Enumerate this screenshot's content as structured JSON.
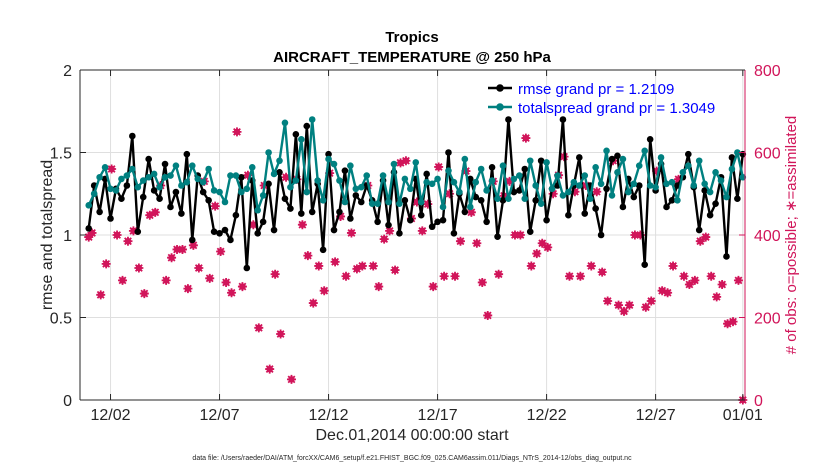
{
  "chart_data": {
    "type": "line",
    "title": "Tropics",
    "subtitle": "AIRCRAFT_TEMPERATURE @ 250 hPa",
    "xlabel": "Dec.01,2014 00:00:00 start",
    "ylabel_left": "rmse and totalspread",
    "ylabel_right": "# of obs: o=possible; ∗=assimilated",
    "footnote": "data file: /Users/raeder/DAI/ATM_forcXX/CAM6_setup/f.e21.FHIST_BGC.f09_025.CAM6assim.011/Diags_NTrS_2014-12/obs_diag_output.nc",
    "x_range": [
      0.6,
      31.1
    ],
    "ylim_left": [
      0,
      2
    ],
    "ylim_right": [
      0,
      800
    ],
    "x_ticks": [
      {
        "x": 2,
        "label": "12/02"
      },
      {
        "x": 7,
        "label": "12/07"
      },
      {
        "x": 12,
        "label": "12/12"
      },
      {
        "x": 17,
        "label": "12/17"
      },
      {
        "x": 22,
        "label": "12/22"
      },
      {
        "x": 27,
        "label": "12/27"
      },
      {
        "x": 31,
        "label": "01/01"
      }
    ],
    "y_ticks_left": [
      "0",
      "0.5",
      "1",
      "1.5",
      "2"
    ],
    "y_ticks_right": [
      "0",
      "200",
      "400",
      "600",
      "800"
    ],
    "colors": {
      "rmse": "#000000",
      "spread": "#008080",
      "obs": "#d1155a",
      "axis": "#262626",
      "grid": "#dfdfdf",
      "legend_text": "#0000ff"
    },
    "legend": [
      {
        "label": "rmse grand pr = 1.2109",
        "series": "rmse"
      },
      {
        "label": "totalspread grand pr = 1.3049",
        "series": "spread"
      }
    ],
    "x": [
      1.0,
      1.25,
      1.5,
      1.75,
      2.0,
      2.25,
      2.5,
      2.75,
      3.0,
      3.25,
      3.5,
      3.75,
      4.0,
      4.25,
      4.5,
      4.75,
      5.0,
      5.25,
      5.5,
      5.75,
      6.0,
      6.25,
      6.5,
      6.75,
      7.0,
      7.25,
      7.5,
      7.75,
      8.0,
      8.25,
      8.5,
      8.75,
      9.0,
      9.25,
      9.5,
      9.75,
      10.0,
      10.25,
      10.5,
      10.75,
      11.0,
      11.25,
      11.5,
      11.75,
      12.0,
      12.25,
      12.5,
      12.75,
      13.0,
      13.25,
      13.5,
      13.75,
      14.0,
      14.25,
      14.5,
      14.75,
      15.0,
      15.25,
      15.5,
      15.75,
      16.0,
      16.25,
      16.5,
      16.75,
      17.0,
      17.25,
      17.5,
      17.75,
      18.0,
      18.25,
      18.5,
      18.75,
      19.0,
      19.25,
      19.5,
      19.75,
      20.0,
      20.25,
      20.5,
      20.75,
      21.0,
      21.25,
      21.5,
      21.75,
      22.0,
      22.25,
      22.5,
      22.75,
      23.0,
      23.25,
      23.5,
      23.75,
      24.0,
      24.25,
      24.5,
      24.75,
      25.0,
      25.25,
      25.5,
      25.75,
      26.0,
      26.25,
      26.5,
      26.75,
      27.0,
      27.25,
      27.5,
      27.75,
      28.0,
      28.25,
      28.5,
      28.75,
      29.0,
      29.25,
      29.5,
      29.75,
      30.0,
      30.25,
      30.5,
      30.75,
      31.0
    ],
    "series": [
      {
        "name": "rmse",
        "values": [
          1.04,
          1.3,
          1.14,
          1.34,
          1.1,
          1.28,
          1.22,
          1.3,
          1.6,
          1.02,
          1.23,
          1.46,
          1.27,
          1.22,
          1.43,
          1.17,
          1.26,
          1.13,
          1.49,
          0.97,
          1.36,
          1.26,
          1.21,
          1.02,
          1.01,
          1.03,
          0.97,
          1.12,
          1.35,
          0.8,
          1.33,
          1.01,
          1.08,
          1.31,
          1.03,
          1.38,
          1.22,
          1.16,
          1.61,
          1.13,
          1.66,
          1.14,
          1.31,
          0.91,
          1.49,
          1.03,
          1.14,
          1.39,
          1.1,
          1.24,
          1.2,
          1.3,
          1.21,
          1.08,
          1.33,
          1.06,
          1.38,
          1.01,
          1.21,
          1.09,
          1.34,
          1.12,
          1.37,
          1.05,
          1.08,
          1.09,
          1.5,
          1.01,
          1.25,
          1.14,
          1.34,
          1.23,
          1.21,
          1.08,
          1.41,
          0.99,
          1.21,
          1.7,
          1.26,
          1.27,
          1.4,
          1.02,
          1.21,
          1.45,
          1.09,
          1.28,
          1.3,
          1.7,
          1.12,
          1.3,
          1.47,
          1.13,
          1.3,
          1.16,
          1.0,
          1.28,
          1.46,
          1.48,
          1.17,
          1.34,
          1.23,
          1.3,
          0.82,
          1.58,
          1.27,
          1.43,
          1.17,
          1.21,
          1.3,
          1.35,
          1.49,
          1.29,
          1.03,
          1.27,
          1.12,
          1.19,
          1.35,
          0.87,
          1.47,
          1.22,
          1.49
        ]
      },
      {
        "name": "spread",
        "values": [
          1.18,
          1.25,
          1.35,
          1.41,
          1.28,
          1.27,
          1.34,
          1.36,
          1.4,
          1.29,
          1.33,
          1.35,
          1.37,
          1.29,
          1.35,
          1.36,
          1.42,
          1.3,
          1.32,
          1.42,
          1.34,
          1.32,
          1.4,
          1.27,
          1.26,
          1.2,
          1.36,
          1.36,
          1.26,
          1.28,
          1.41,
          1.15,
          1.24,
          1.5,
          1.37,
          1.45,
          1.68,
          1.29,
          1.33,
          1.58,
          1.26,
          1.7,
          1.33,
          1.21,
          1.46,
          1.43,
          1.33,
          1.2,
          1.42,
          1.28,
          1.29,
          1.36,
          1.19,
          1.19,
          1.36,
          1.2,
          1.43,
          1.19,
          1.34,
          1.28,
          1.44,
          1.2,
          1.32,
          1.31,
          1.34,
          1.17,
          1.39,
          1.32,
          1.26,
          1.46,
          1.17,
          1.32,
          1.4,
          1.27,
          1.33,
          1.22,
          1.42,
          1.22,
          1.34,
          1.36,
          1.22,
          1.45,
          1.3,
          1.19,
          1.44,
          1.28,
          1.36,
          1.24,
          1.26,
          1.32,
          1.3,
          1.36,
          1.22,
          1.41,
          1.31,
          1.51,
          1.24,
          1.38,
          1.46,
          1.26,
          1.31,
          1.42,
          1.51,
          1.3,
          1.29,
          1.47,
          1.31,
          1.32,
          1.21,
          1.38,
          1.42,
          1.3,
          1.45,
          1.31,
          1.26,
          1.38,
          1.33,
          1.23,
          1.4,
          1.5,
          1.35
        ]
      }
    ],
    "obs_points": [
      {
        "x": 1.0,
        "y": 395
      },
      {
        "x": 1.15,
        "y": 405
      },
      {
        "x": 1.55,
        "y": 255
      },
      {
        "x": 1.8,
        "y": 330
      },
      {
        "x": 2.05,
        "y": 560
      },
      {
        "x": 2.3,
        "y": 400
      },
      {
        "x": 2.55,
        "y": 290
      },
      {
        "x": 2.8,
        "y": 385
      },
      {
        "x": 3.05,
        "y": 410
      },
      {
        "x": 3.3,
        "y": 320
      },
      {
        "x": 3.55,
        "y": 258
      },
      {
        "x": 3.8,
        "y": 448
      },
      {
        "x": 4.05,
        "y": 455
      },
      {
        "x": 4.3,
        "y": 520
      },
      {
        "x": 4.55,
        "y": 290
      },
      {
        "x": 4.8,
        "y": 345
      },
      {
        "x": 5.05,
        "y": 365
      },
      {
        "x": 5.3,
        "y": 365
      },
      {
        "x": 5.55,
        "y": 270
      },
      {
        "x": 5.8,
        "y": 375
      },
      {
        "x": 6.05,
        "y": 320
      },
      {
        "x": 6.3,
        "y": 530
      },
      {
        "x": 6.55,
        "y": 295
      },
      {
        "x": 6.8,
        "y": 470
      },
      {
        "x": 7.05,
        "y": 360
      },
      {
        "x": 7.3,
        "y": 285
      },
      {
        "x": 7.55,
        "y": 260
      },
      {
        "x": 7.8,
        "y": 650
      },
      {
        "x": 8.05,
        "y": 275
      },
      {
        "x": 8.3,
        "y": 545
      },
      {
        "x": 8.55,
        "y": 425
      },
      {
        "x": 8.8,
        "y": 175
      },
      {
        "x": 9.05,
        "y": 520
      },
      {
        "x": 9.3,
        "y": 75
      },
      {
        "x": 9.55,
        "y": 305
      },
      {
        "x": 9.8,
        "y": 160
      },
      {
        "x": 10.05,
        "y": 540
      },
      {
        "x": 10.3,
        "y": 50
      },
      {
        "x": 10.55,
        "y": 535
      },
      {
        "x": 10.8,
        "y": 425
      },
      {
        "x": 11.05,
        "y": 350
      },
      {
        "x": 11.3,
        "y": 235
      },
      {
        "x": 11.55,
        "y": 325
      },
      {
        "x": 11.8,
        "y": 265
      },
      {
        "x": 12.05,
        "y": 550
      },
      {
        "x": 12.3,
        "y": 335
      },
      {
        "x": 12.55,
        "y": 445
      },
      {
        "x": 12.8,
        "y": 300
      },
      {
        "x": 13.05,
        "y": 405
      },
      {
        "x": 13.3,
        "y": 318
      },
      {
        "x": 13.55,
        "y": 325
      },
      {
        "x": 13.8,
        "y": 520
      },
      {
        "x": 14.05,
        "y": 325
      },
      {
        "x": 14.3,
        "y": 275
      },
      {
        "x": 14.55,
        "y": 390
      },
      {
        "x": 14.8,
        "y": 410
      },
      {
        "x": 15.05,
        "y": 315
      },
      {
        "x": 15.3,
        "y": 575
      },
      {
        "x": 15.55,
        "y": 580
      },
      {
        "x": 15.8,
        "y": 440
      },
      {
        "x": 16.05,
        "y": 480
      },
      {
        "x": 16.3,
        "y": 410
      },
      {
        "x": 16.55,
        "y": 475
      },
      {
        "x": 16.8,
        "y": 275
      },
      {
        "x": 17.05,
        "y": 565
      },
      {
        "x": 17.3,
        "y": 300
      },
      {
        "x": 17.55,
        "y": 500
      },
      {
        "x": 17.8,
        "y": 300
      },
      {
        "x": 18.05,
        "y": 385
      },
      {
        "x": 18.3,
        "y": 555
      },
      {
        "x": 18.55,
        "y": 455
      },
      {
        "x": 18.8,
        "y": 380
      },
      {
        "x": 19.05,
        "y": 285
      },
      {
        "x": 19.3,
        "y": 205
      },
      {
        "x": 19.55,
        "y": 530
      },
      {
        "x": 19.8,
        "y": 305
      },
      {
        "x": 20.05,
        "y": 495
      },
      {
        "x": 20.3,
        "y": 530
      },
      {
        "x": 20.55,
        "y": 400
      },
      {
        "x": 20.8,
        "y": 400
      },
      {
        "x": 21.05,
        "y": 635
      },
      {
        "x": 21.3,
        "y": 325
      },
      {
        "x": 21.55,
        "y": 355
      },
      {
        "x": 21.8,
        "y": 380
      },
      {
        "x": 22.05,
        "y": 370
      },
      {
        "x": 22.3,
        "y": 500
      },
      {
        "x": 22.55,
        "y": 545
      },
      {
        "x": 22.8,
        "y": 590
      },
      {
        "x": 23.05,
        "y": 300
      },
      {
        "x": 23.3,
        "y": 505
      },
      {
        "x": 23.55,
        "y": 300
      },
      {
        "x": 23.8,
        "y": 520
      },
      {
        "x": 24.05,
        "y": 325
      },
      {
        "x": 24.3,
        "y": 505
      },
      {
        "x": 24.55,
        "y": 310
      },
      {
        "x": 24.8,
        "y": 240
      },
      {
        "x": 25.05,
        "y": 580
      },
      {
        "x": 25.3,
        "y": 230
      },
      {
        "x": 25.55,
        "y": 215
      },
      {
        "x": 25.8,
        "y": 230
      },
      {
        "x": 26.05,
        "y": 400
      },
      {
        "x": 26.3,
        "y": 400
      },
      {
        "x": 26.55,
        "y": 225
      },
      {
        "x": 26.8,
        "y": 240
      },
      {
        "x": 27.05,
        "y": 555
      },
      {
        "x": 27.3,
        "y": 265
      },
      {
        "x": 27.55,
        "y": 260
      },
      {
        "x": 27.8,
        "y": 325
      },
      {
        "x": 28.05,
        "y": 535
      },
      {
        "x": 28.3,
        "y": 300
      },
      {
        "x": 28.55,
        "y": 280
      },
      {
        "x": 28.8,
        "y": 290
      },
      {
        "x": 29.05,
        "y": 385
      },
      {
        "x": 29.3,
        "y": 395
      },
      {
        "x": 29.55,
        "y": 300
      },
      {
        "x": 29.8,
        "y": 250
      },
      {
        "x": 30.05,
        "y": 280
      },
      {
        "x": 30.3,
        "y": 185
      },
      {
        "x": 30.55,
        "y": 190
      },
      {
        "x": 30.8,
        "y": 290
      },
      {
        "x": 31.0,
        "y": 0
      }
    ]
  }
}
